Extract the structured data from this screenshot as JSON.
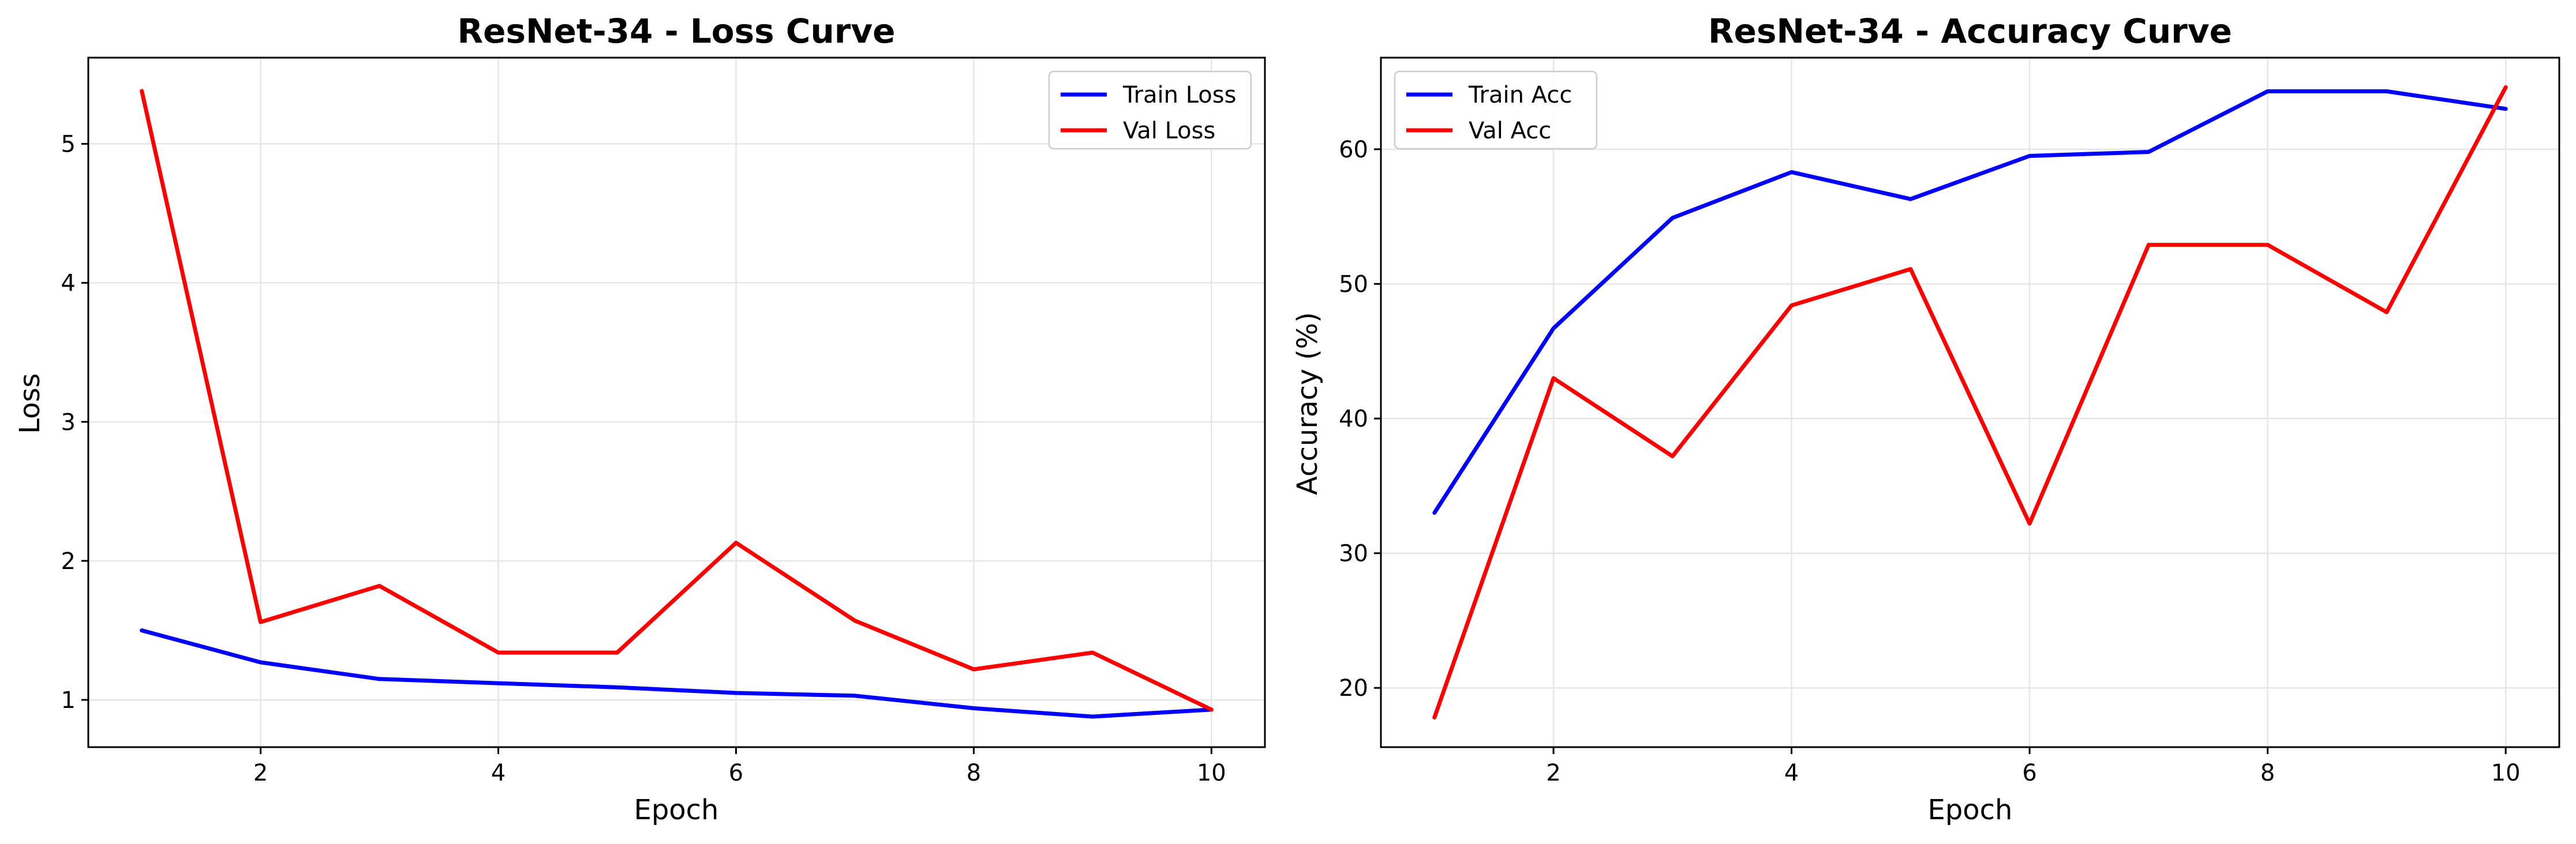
{
  "chart_data": [
    {
      "type": "line",
      "title": "ResNet-34 - Loss Curve",
      "xlabel": "Epoch",
      "ylabel": "Loss",
      "xlim": [
        0.55,
        10.45
      ],
      "ylim": [
        0.66,
        5.62
      ],
      "xticks": [
        2,
        4,
        6,
        8,
        10
      ],
      "yticks": [
        1,
        2,
        3,
        4,
        5
      ],
      "grid": true,
      "legend_position": "top-right",
      "x": [
        1,
        2,
        3,
        4,
        5,
        6,
        7,
        8,
        9,
        10
      ],
      "series": [
        {
          "name": "Train Loss",
          "color": "#0000ff",
          "values": [
            1.5,
            1.27,
            1.15,
            1.12,
            1.09,
            1.05,
            1.03,
            0.94,
            0.88,
            0.93
          ]
        },
        {
          "name": "Val Loss",
          "color": "#ff0000",
          "values": [
            5.38,
            1.56,
            1.82,
            1.34,
            1.34,
            2.13,
            1.57,
            1.22,
            1.34,
            0.93
          ]
        }
      ]
    },
    {
      "type": "line",
      "title": "ResNet-34 - Accuracy Curve",
      "xlabel": "Epoch",
      "ylabel": "Accuracy (%)",
      "xlim": [
        0.55,
        10.45
      ],
      "ylim": [
        15.6,
        66.8
      ],
      "xticks": [
        2,
        4,
        6,
        8,
        10
      ],
      "yticks": [
        20,
        30,
        40,
        50,
        60
      ],
      "grid": true,
      "legend_position": "top-left",
      "x": [
        1,
        2,
        3,
        4,
        5,
        6,
        7,
        8,
        9,
        10
      ],
      "series": [
        {
          "name": "Train Acc",
          "color": "#0000ff",
          "values": [
            33.0,
            46.7,
            54.9,
            58.3,
            56.3,
            59.5,
            59.8,
            64.3,
            64.3,
            63.0
          ]
        },
        {
          "name": "Val Acc",
          "color": "#ff0000",
          "values": [
            17.8,
            43.0,
            37.2,
            48.4,
            51.1,
            32.2,
            52.9,
            52.9,
            47.9,
            64.6
          ]
        }
      ]
    }
  ]
}
